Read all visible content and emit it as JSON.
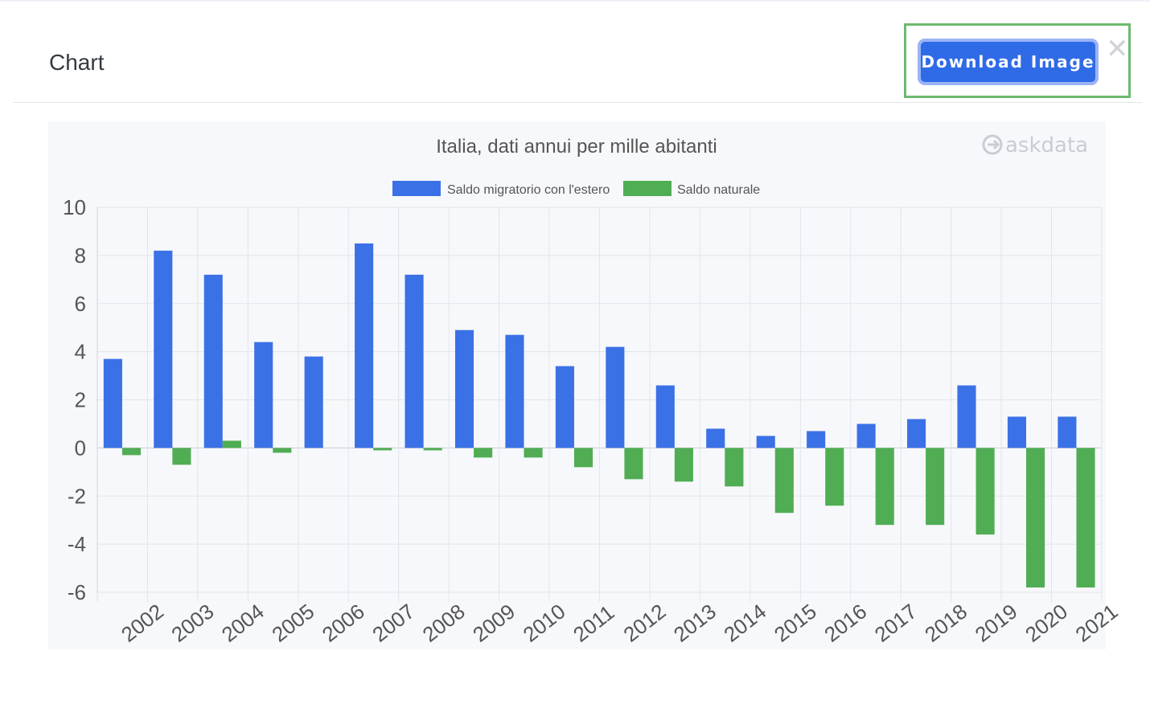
{
  "modal": {
    "title": "Chart",
    "download_label": "Download Image",
    "close_glyph": "✕"
  },
  "watermark": "askdata",
  "colors": {
    "series_blue": "#3b71e6",
    "series_green": "#50ad54",
    "button_blue": "#2f6be6",
    "highlight_green": "#6dba6e"
  },
  "chart_data": {
    "type": "bar",
    "title": "Italia, dati annui per mille abitanti",
    "xlabel": "",
    "ylabel": "",
    "ylim": [
      -6,
      10
    ],
    "yticks": [
      10,
      8,
      6,
      4,
      2,
      0,
      -2,
      -4,
      -6
    ],
    "grid": true,
    "legend_position": "top-center",
    "categories": [
      "2002",
      "2003",
      "2004",
      "2005",
      "2006",
      "2007",
      "2008",
      "2009",
      "2010",
      "2011",
      "2012",
      "2013",
      "2014",
      "2015",
      "2016",
      "2017",
      "2018",
      "2019",
      "2020",
      "2021"
    ],
    "series": [
      {
        "name": "Saldo migratorio con l'estero",
        "color": "#3b71e6",
        "values": [
          3.7,
          8.2,
          7.2,
          4.4,
          3.8,
          8.5,
          7.2,
          4.9,
          4.7,
          3.4,
          4.2,
          2.6,
          0.8,
          0.5,
          0.7,
          1.0,
          1.2,
          2.6,
          1.3,
          1.3
        ]
      },
      {
        "name": "Saldo naturale",
        "color": "#50ad54",
        "values": [
          -0.3,
          -0.7,
          0.3,
          -0.2,
          0.0,
          -0.1,
          -0.1,
          -0.4,
          -0.4,
          -0.8,
          -1.3,
          -1.4,
          -1.6,
          -2.7,
          -2.4,
          -3.2,
          -3.2,
          -3.6,
          -5.8,
          -5.8
        ]
      }
    ]
  }
}
